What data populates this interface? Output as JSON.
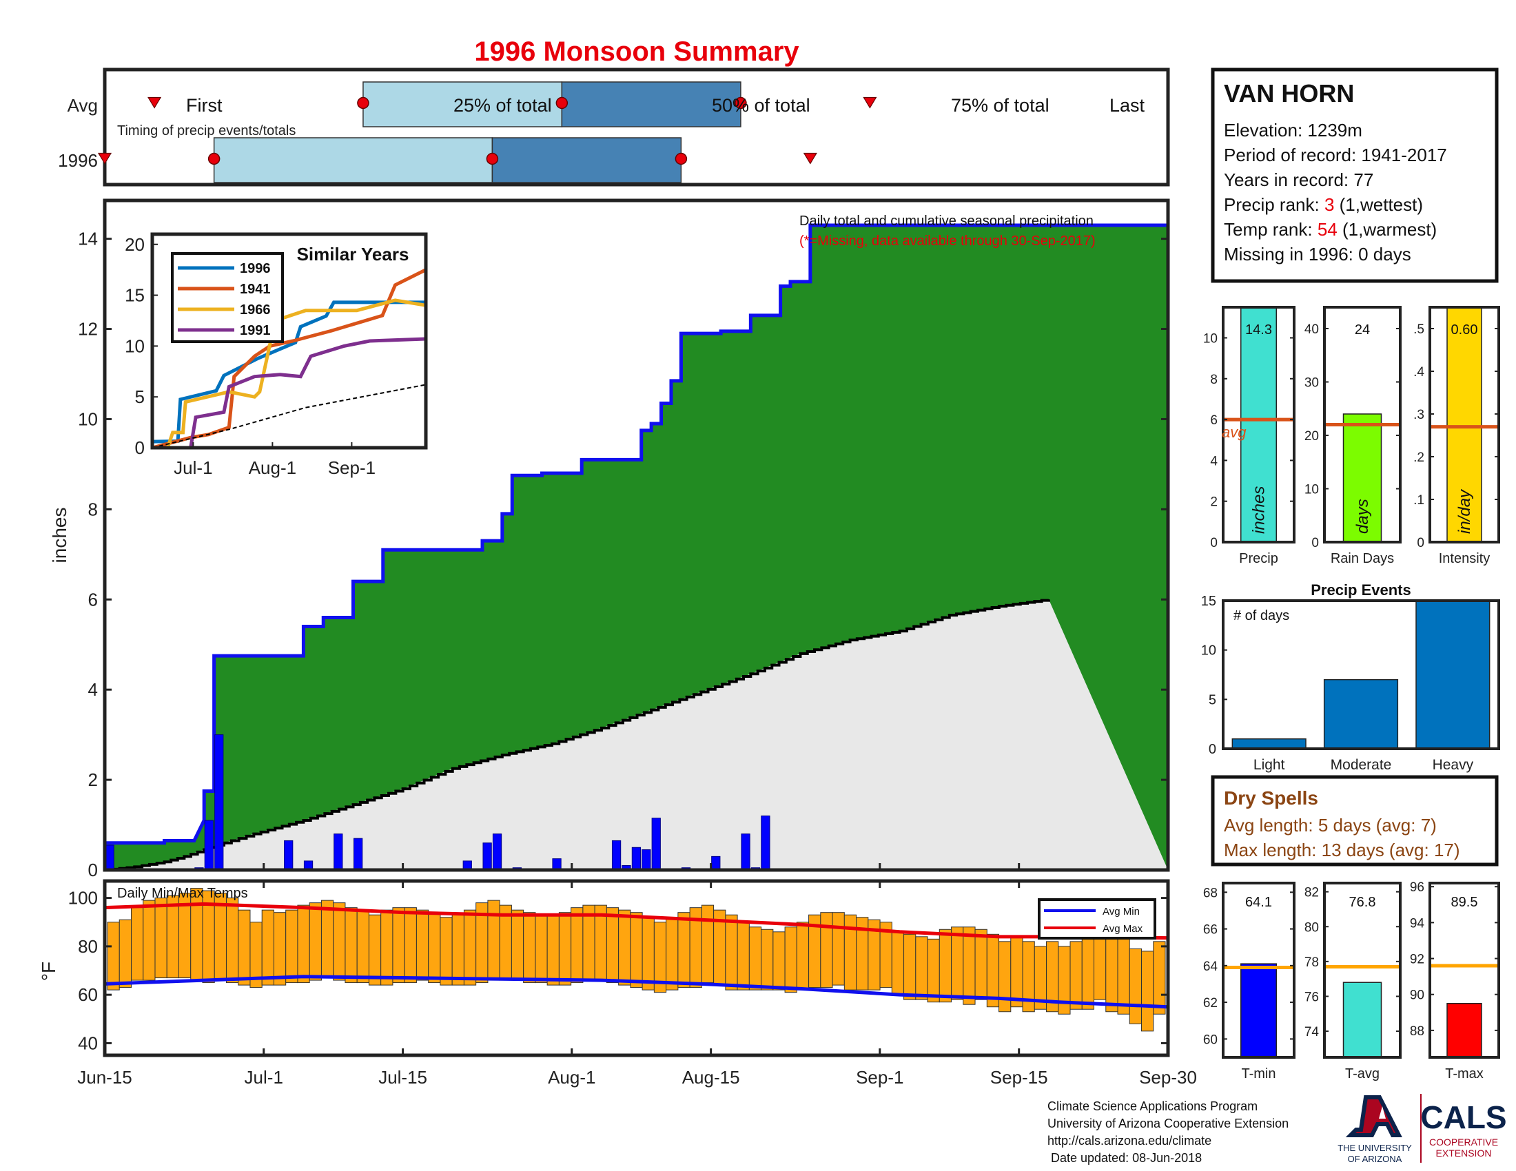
{
  "page": {
    "title": "1996 Monsoon Summary"
  },
  "timing": {
    "caption": "Timing of precip events/totals",
    "row_avg": "Avg",
    "row_year": "1996",
    "labels": {
      "first": "First",
      "p25": "25% of total",
      "p50": "50% of total",
      "p75": "75% of total",
      "last": "Last"
    }
  },
  "station": {
    "name": "VAN HORN",
    "elevation": "Elevation: 1239m",
    "period": "Period of record: 1941-2017",
    "years": "Years in record: 77",
    "precip_rank_label": "Precip rank: ",
    "precip_rank": "3",
    "precip_rank_note": " (1,wettest)",
    "temp_rank_label": "Temp rank: ",
    "temp_rank": "54",
    "temp_rank_note": " (1,warmest)",
    "missing": "Missing in 1996: 0 days"
  },
  "main_note": {
    "line1": "Daily total and cumulative seasonal precipitation",
    "line2": "(*=Missing, data available through 30-Sep-2017)"
  },
  "x_axis_ticks": [
    "Jun-15",
    "Jul-1",
    "Jul-15",
    "Aug-1",
    "Aug-15",
    "Sep-1",
    "Sep-15",
    "Sep-30"
  ],
  "dry_spells": {
    "title": "Dry Spells",
    "avg": "Avg length: 5 days (avg: 7)",
    "max": "Max length: 13 days (avg: 17)"
  },
  "footer": {
    "line1": "Climate Science Applications Program",
    "line2": "University of Arizona Cooperative Extension",
    "line3": "http://cals.arizona.edu/climate",
    "line4": " Date updated: 08-Jun-2018",
    "logo_ua_line1": "THE UNIVERSITY",
    "logo_ua_line2": "OF ARIZONA",
    "logo_cals": "CALS",
    "logo_cals_line1": "COOPERATIVE",
    "logo_cals_line2": "EXTENSION"
  },
  "colors": {
    "title_red": "#e8000b",
    "cum_green": "#228b22",
    "cum_line": "#1010ee",
    "avg_gray": "#e8e8e8",
    "daily_bar": "#0000ff",
    "temp_orange": "#ffa50f",
    "light_blue": "#add8e6",
    "steel_blue": "#4682b4",
    "event_blue": "#0072bd",
    "avg_orange": "#d95319",
    "dry_brown": "#8b4513"
  },
  "chart_data": [
    {
      "type": "bar",
      "id": "timing",
      "unit": "day of season (0 = Jun-15)",
      "avg": {
        "first": 5,
        "p25": 26,
        "p50": 46,
        "p75": 64,
        "last": 77
      },
      "year_1996": {
        "first": 0,
        "p25": 11,
        "p50": 39,
        "p75": 58,
        "last": 71
      }
    },
    {
      "type": "area",
      "id": "cumulative_precip",
      "ylabel": "inches",
      "ylim": [
        0,
        14.3
      ],
      "yticks": [
        0,
        2,
        4,
        6,
        8,
        10,
        12,
        14
      ],
      "xlim": [
        0,
        107
      ],
      "cumulative_1996": [
        [
          0,
          0.6
        ],
        [
          6,
          0.6
        ],
        [
          6,
          0.65
        ],
        [
          9,
          0.65
        ],
        [
          9,
          0.65
        ],
        [
          10,
          1.1
        ],
        [
          10,
          1.75
        ],
        [
          11,
          1.75
        ],
        [
          11,
          4.75
        ],
        [
          20,
          4.75
        ],
        [
          20,
          5.4
        ],
        [
          22,
          5.4
        ],
        [
          22,
          5.6
        ],
        [
          25,
          5.6
        ],
        [
          25,
          6.4
        ],
        [
          28,
          6.4
        ],
        [
          28,
          7.1
        ],
        [
          38,
          7.1
        ],
        [
          38,
          7.3
        ],
        [
          40,
          7.3
        ],
        [
          40,
          7.9
        ],
        [
          41,
          7.9
        ],
        [
          41,
          8.75
        ],
        [
          44,
          8.75
        ],
        [
          44,
          8.8
        ],
        [
          48,
          8.8
        ],
        [
          48,
          9.1
        ],
        [
          54,
          9.1
        ],
        [
          54,
          9.75
        ],
        [
          55,
          9.75
        ],
        [
          55,
          9.9
        ],
        [
          56,
          9.9
        ],
        [
          56,
          10.35
        ],
        [
          57,
          10.35
        ],
        [
          57,
          10.85
        ],
        [
          58,
          10.85
        ],
        [
          58,
          11.9
        ],
        [
          62,
          11.9
        ],
        [
          62,
          11.95
        ],
        [
          65,
          11.95
        ],
        [
          65,
          12.3
        ],
        [
          68,
          12.3
        ],
        [
          68,
          12.95
        ],
        [
          69,
          12.95
        ],
        [
          69,
          13.05
        ],
        [
          71,
          13.05
        ],
        [
          71,
          14.3
        ],
        [
          107,
          14.3
        ]
      ],
      "avg_cumulative": [
        [
          0,
          0
        ],
        [
          3,
          0.07
        ],
        [
          6,
          0.18
        ],
        [
          8,
          0.3
        ],
        [
          10,
          0.45
        ],
        [
          12,
          0.6
        ],
        [
          15,
          0.8
        ],
        [
          20,
          1.1
        ],
        [
          25,
          1.45
        ],
        [
          30,
          1.8
        ],
        [
          35,
          2.25
        ],
        [
          40,
          2.55
        ],
        [
          45,
          2.8
        ],
        [
          50,
          3.15
        ],
        [
          55,
          3.55
        ],
        [
          60,
          3.95
        ],
        [
          65,
          4.35
        ],
        [
          70,
          4.8
        ],
        [
          75,
          5.1
        ],
        [
          80,
          5.3
        ],
        [
          85,
          5.65
        ],
        [
          90,
          5.85
        ],
        [
          95,
          6.0
        ]
      ],
      "daily_1996": [
        [
          0,
          0.55
        ],
        [
          9,
          0.05
        ],
        [
          10,
          1.1
        ],
        [
          11,
          3.0
        ],
        [
          18,
          0.65
        ],
        [
          20,
          0.2
        ],
        [
          23,
          0.8
        ],
        [
          25,
          0.7
        ],
        [
          36,
          0.2
        ],
        [
          38,
          0.6
        ],
        [
          39,
          0.8
        ],
        [
          41,
          0.05
        ],
        [
          45,
          0.25
        ],
        [
          51,
          0.65
        ],
        [
          52,
          0.1
        ],
        [
          53,
          0.5
        ],
        [
          54,
          0.45
        ],
        [
          55,
          1.15
        ],
        [
          58,
          0.05
        ],
        [
          61,
          0.3
        ],
        [
          64,
          0.8
        ],
        [
          65,
          0.05
        ],
        [
          66,
          1.2
        ]
      ]
    },
    {
      "type": "line",
      "id": "similar_years",
      "title": "Similar Years",
      "ylim": [
        0,
        20
      ],
      "yticks": [
        0,
        5,
        10,
        15,
        20
      ],
      "xticks": [
        "Jul-1",
        "Aug-1",
        "Sep-1"
      ],
      "series": [
        {
          "name": "1996",
          "color": "#0072bd",
          "values": [
            [
              0,
              0.6
            ],
            [
              10,
              0.65
            ],
            [
              11,
              4.75
            ],
            [
              25,
              5.6
            ],
            [
              28,
              7.1
            ],
            [
              41,
              8.75
            ],
            [
              56,
              10.35
            ],
            [
              58,
              11.9
            ],
            [
              68,
              12.95
            ],
            [
              71,
              14.3
            ],
            [
              107,
              14.3
            ]
          ]
        },
        {
          "name": "1941",
          "color": "#d95319",
          "values": [
            [
              0,
              0
            ],
            [
              15,
              1
            ],
            [
              22,
              1.3
            ],
            [
              30,
              2
            ],
            [
              32,
              7
            ],
            [
              40,
              9
            ],
            [
              46,
              10
            ],
            [
              55,
              10.5
            ],
            [
              70,
              11.5
            ],
            [
              90,
              13
            ],
            [
              95,
              16
            ],
            [
              107,
              17.5
            ]
          ]
        },
        {
          "name": "1966",
          "color": "#edb120",
          "values": [
            [
              0,
              0
            ],
            [
              6,
              0
            ],
            [
              8,
              1.5
            ],
            [
              12,
              1.5
            ],
            [
              13,
              4.5
            ],
            [
              30,
              5.5
            ],
            [
              40,
              5
            ],
            [
              42,
              5.5
            ],
            [
              48,
              12.5
            ],
            [
              60,
              13.5
            ],
            [
              80,
              13.5
            ],
            [
              95,
              14.5
            ],
            [
              107,
              14
            ]
          ]
        },
        {
          "name": "1991",
          "color": "#7e2f8e",
          "values": [
            [
              0,
              0
            ],
            [
              15,
              0
            ],
            [
              17,
              3
            ],
            [
              28,
              3.5
            ],
            [
              30,
              6
            ],
            [
              40,
              7
            ],
            [
              50,
              7.2
            ],
            [
              58,
              7
            ],
            [
              62,
              9
            ],
            [
              75,
              10
            ],
            [
              85,
              10.5
            ],
            [
              107,
              10.7
            ]
          ]
        },
        {
          "name": "avg",
          "color": "#000000",
          "values": [
            [
              0,
              0
            ],
            [
              30,
              1.8
            ],
            [
              60,
              3.95
            ],
            [
              107,
              6.2
            ]
          ]
        }
      ]
    },
    {
      "type": "bar",
      "id": "daily_temps",
      "title": "Daily Min/Max Temps",
      "ylabel": "°F",
      "ylim": [
        35,
        107
      ],
      "yticks": [
        40,
        60,
        80,
        100
      ],
      "legend": [
        "Avg Min",
        "Avg Max"
      ],
      "legend_position": "top-right",
      "avg_max": [
        [
          0,
          96
        ],
        [
          10,
          97.5
        ],
        [
          20,
          96
        ],
        [
          30,
          94
        ],
        [
          40,
          93
        ],
        [
          50,
          93
        ],
        [
          60,
          91
        ],
        [
          70,
          89
        ],
        [
          80,
          86
        ],
        [
          90,
          84
        ],
        [
          96,
          84
        ],
        [
          107,
          83.5
        ]
      ],
      "avg_min": [
        [
          0,
          64.5
        ],
        [
          10,
          66
        ],
        [
          20,
          67.5
        ],
        [
          30,
          67
        ],
        [
          40,
          66.5
        ],
        [
          50,
          66
        ],
        [
          60,
          64.5
        ],
        [
          70,
          62.5
        ],
        [
          80,
          60
        ],
        [
          90,
          58.5
        ],
        [
          96,
          57
        ],
        [
          107,
          55
        ]
      ],
      "max_series": [
        90,
        91,
        96,
        99,
        100,
        101,
        102,
        104,
        103,
        102,
        100,
        95,
        90,
        95,
        94,
        95,
        97,
        98,
        99,
        98,
        96,
        95,
        93,
        95,
        96,
        96,
        95,
        94,
        92,
        93,
        95,
        98,
        99,
        97,
        95,
        94,
        93,
        93,
        94,
        96,
        97,
        97,
        96,
        95,
        94,
        92,
        90,
        92,
        94,
        96,
        97,
        95,
        93,
        90,
        88,
        87,
        86,
        88,
        90,
        93,
        94,
        94,
        93,
        92,
        91,
        90,
        86,
        85,
        84,
        83,
        87,
        88,
        88,
        87,
        85,
        82,
        84,
        82,
        80,
        82,
        80,
        82,
        83,
        85,
        84,
        83,
        79,
        78,
        82
      ],
      "min_series": [
        62,
        63,
        66,
        66,
        67,
        67,
        67,
        66,
        65,
        66,
        65,
        64,
        63,
        64,
        64,
        65,
        65,
        66,
        67,
        66,
        65,
        65,
        64,
        64,
        65,
        65,
        66,
        65,
        64,
        64,
        64,
        65,
        66,
        66,
        66,
        65,
        65,
        64,
        64,
        65,
        66,
        66,
        65,
        64,
        63,
        62,
        61,
        62,
        63,
        63,
        65,
        64,
        62,
        62,
        62,
        62,
        62,
        61,
        62,
        63,
        63,
        64,
        62,
        62,
        62,
        63,
        60,
        58,
        58,
        57,
        57,
        58,
        56,
        58,
        55,
        53,
        55,
        53,
        54,
        53,
        52,
        54,
        54,
        58,
        53,
        52,
        48,
        45,
        52
      ]
    },
    {
      "type": "bar",
      "id": "precip_total",
      "xlabel": "Precip",
      "unit_label": "inches",
      "value": 14.3,
      "value_label": "14.3",
      "avg": 6,
      "avg_label": "avg",
      "ylim": [
        0,
        11.5
      ],
      "yticks": [
        0,
        2,
        4,
        6,
        8,
        10
      ]
    },
    {
      "type": "bar",
      "id": "rain_days",
      "xlabel": "Rain Days",
      "unit_label": "days",
      "value": 24,
      "value_label": "24",
      "avg": 22,
      "ylim": [
        0,
        44
      ],
      "yticks": [
        0,
        10,
        20,
        30,
        40
      ]
    },
    {
      "type": "bar",
      "id": "intensity",
      "xlabel": "Intensity",
      "unit_label": "in/day",
      "value": 0.6,
      "value_label": "0.60",
      "avg": 0.27,
      "ylim": [
        0,
        0.55
      ],
      "yticks": [
        0,
        0.1,
        0.2,
        0.3,
        0.4,
        0.5
      ]
    },
    {
      "type": "bar",
      "id": "precip_events",
      "title": "Precip Events",
      "ylabel": "# of days",
      "categories": [
        "Light",
        "Moderate",
        "Heavy"
      ],
      "values": [
        1,
        7,
        15
      ],
      "ylim": [
        0,
        15
      ],
      "yticks": [
        0,
        5,
        10,
        15
      ]
    },
    {
      "type": "bar",
      "id": "tmin",
      "xlabel": "T-min",
      "value": 64.1,
      "value_label": "64.1",
      "avg": 63.9,
      "ylim": [
        59,
        68.5
      ],
      "yticks": [
        60,
        62,
        64,
        66,
        68
      ]
    },
    {
      "type": "bar",
      "id": "tavg",
      "xlabel": "T-avg",
      "value": 76.8,
      "value_label": "76.8",
      "avg": 77.7,
      "ylim": [
        72.5,
        82.5
      ],
      "yticks": [
        74,
        76,
        78,
        80,
        82
      ]
    },
    {
      "type": "bar",
      "id": "tmax",
      "xlabel": "T-max",
      "value": 89.5,
      "value_label": "89.5",
      "avg": 91.6,
      "ylim": [
        86.5,
        96.2
      ],
      "yticks": [
        88,
        90,
        92,
        94,
        96
      ]
    }
  ]
}
